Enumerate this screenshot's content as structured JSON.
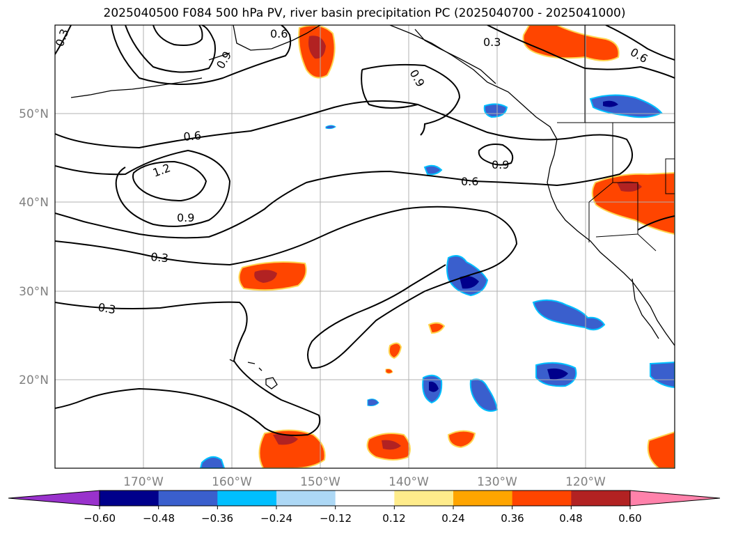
{
  "title": "2025040500 F084 500 hPa PV, river basin precipitation PC (2025040700 - 2025041000)",
  "map": {
    "lat_labels": [
      "50°N",
      "40°N",
      "30°N",
      "20°N"
    ],
    "lon_labels": [
      "170°W",
      "160°W",
      "150°W",
      "140°W",
      "130°W",
      "120°W"
    ],
    "label_color": "#808080"
  },
  "pv_contour_labels": [
    {
      "text": "0.3",
      "rot": -70
    },
    {
      "text": "0.6",
      "rot": 0
    },
    {
      "text": "0.3",
      "rot": 0
    },
    {
      "text": "0.9",
      "rot": -60
    },
    {
      "text": "0.9",
      "rot": 60
    },
    {
      "text": "0.6",
      "rot": -5
    },
    {
      "text": "1.2",
      "rot": -20
    },
    {
      "text": "0.9",
      "rot": 0
    },
    {
      "text": "0.6",
      "rot": 0
    },
    {
      "text": "0.9",
      "rot": 0
    },
    {
      "text": "0.3",
      "rot": 5
    },
    {
      "text": "0.3",
      "rot": 10
    },
    {
      "text": "0.6",
      "rot": 30
    }
  ],
  "colorbar": {
    "ticks": [
      "−0.60",
      "−0.48",
      "−0.36",
      "−0.24",
      "−0.12",
      "0.12",
      "0.24",
      "0.36",
      "0.48",
      "0.60"
    ],
    "colors": [
      "#9932CC",
      "#00008B",
      "#3A5FCD",
      "#00BFFF",
      "#ADD8F5",
      "#FFFFFF",
      "#FFEC8B",
      "#FFA500",
      "#FF4500",
      "#B22222",
      "#FF82AB"
    ]
  }
}
